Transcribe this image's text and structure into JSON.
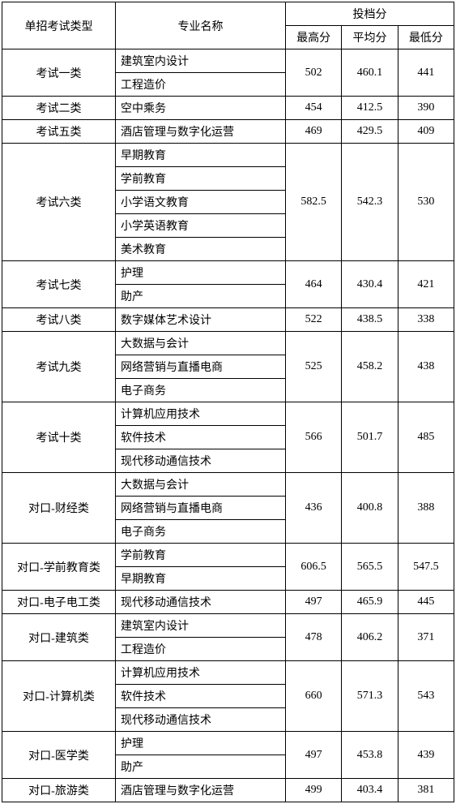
{
  "headers": {
    "exam_type": "单招考试类型",
    "major_name": "专业名称",
    "score_group": "投档分",
    "max_score": "最高分",
    "avg_score": "平均分",
    "min_score": "最低分"
  },
  "rows": [
    {
      "type": "考试一类",
      "majors": [
        "建筑室内设计",
        "工程造价"
      ],
      "max": "502",
      "avg": "460.1",
      "min": "441"
    },
    {
      "type": "考试二类",
      "majors": [
        "空中乘务"
      ],
      "max": "454",
      "avg": "412.5",
      "min": "390"
    },
    {
      "type": "考试五类",
      "majors": [
        "酒店管理与数字化运营"
      ],
      "max": "469",
      "avg": "429.5",
      "min": "409"
    },
    {
      "type": "考试六类",
      "majors": [
        "早期教育",
        "学前教育",
        "小学语文教育",
        "小学英语教育",
        "美术教育"
      ],
      "max": "582.5",
      "avg": "542.3",
      "min": "530"
    },
    {
      "type": "考试七类",
      "majors": [
        "护理",
        "助产"
      ],
      "max": "464",
      "avg": "430.4",
      "min": "421"
    },
    {
      "type": "考试八类",
      "majors": [
        "数字媒体艺术设计"
      ],
      "max": "522",
      "avg": "438.5",
      "min": "338"
    },
    {
      "type": "考试九类",
      "majors": [
        "大数据与会计",
        "网络营销与直播电商",
        "电子商务"
      ],
      "max": "525",
      "avg": "458.2",
      "min": "438"
    },
    {
      "type": "考试十类",
      "majors": [
        "计算机应用技术",
        "软件技术",
        "现代移动通信技术"
      ],
      "max": "566",
      "avg": "501.7",
      "min": "485"
    },
    {
      "type": "对口-财经类",
      "majors": [
        "大数据与会计",
        "网络营销与直播电商",
        "电子商务"
      ],
      "max": "436",
      "avg": "400.8",
      "min": "388"
    },
    {
      "type": "对口-学前教育类",
      "majors": [
        "学前教育",
        "早期教育"
      ],
      "max": "606.5",
      "avg": "565.5",
      "min": "547.5"
    },
    {
      "type": "对口-电子电工类",
      "majors": [
        "现代移动通信技术"
      ],
      "max": "497",
      "avg": "465.9",
      "min": "445"
    },
    {
      "type": "对口-建筑类",
      "majors": [
        "建筑室内设计",
        "工程造价"
      ],
      "max": "478",
      "avg": "406.2",
      "min": "371"
    },
    {
      "type": "对口-计算机类",
      "majors": [
        "计算机应用技术",
        "软件技术",
        "现代移动通信技术"
      ],
      "max": "660",
      "avg": "571.3",
      "min": "543"
    },
    {
      "type": "对口-医学类",
      "majors": [
        "护理",
        "助产"
      ],
      "max": "497",
      "avg": "453.8",
      "min": "439"
    },
    {
      "type": "对口-旅游类",
      "majors": [
        "酒店管理与数字化运营"
      ],
      "max": "499",
      "avg": "403.4",
      "min": "381"
    }
  ],
  "style": {
    "border_color": "#000000",
    "background_color": "#ffffff",
    "font_size": 14,
    "col_widths": {
      "type": 140,
      "major": 210,
      "score": 70
    }
  }
}
